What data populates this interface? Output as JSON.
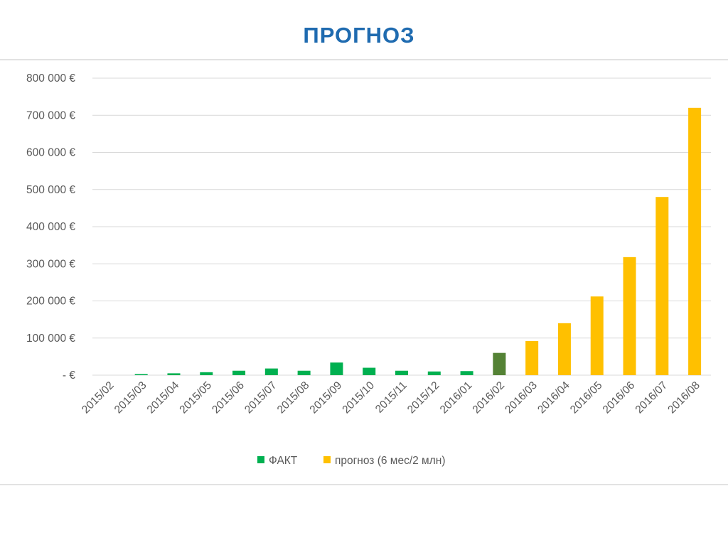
{
  "page": {
    "title": "ПРОГНОЗ"
  },
  "chart_data": {
    "type": "bar",
    "title": "",
    "xlabel": "",
    "ylabel": "",
    "ylim": [
      0,
      800000
    ],
    "grid": true,
    "legend_position": "bottom",
    "y_ticks": [
      0,
      100000,
      200000,
      300000,
      400000,
      500000,
      600000,
      700000,
      800000
    ],
    "y_tick_labels": [
      "- €",
      "100 000 €",
      "200 000 €",
      "300 000 €",
      "400 000 €",
      "500 000 €",
      "600 000 €",
      "700 000 €",
      "800 000 €"
    ],
    "categories": [
      "2015/02",
      "2015/03",
      "2015/04",
      "2015/05",
      "2015/06",
      "2015/07",
      "2015/08",
      "2015/09",
      "2015/10",
      "2015/11",
      "2015/12",
      "2016/01",
      "2016/02",
      "2016/03",
      "2016/04",
      "2016/05",
      "2016/06",
      "2016/07",
      "2016/08"
    ],
    "series": [
      {
        "name": "ФАКТ",
        "color": "#00b050",
        "values": [
          0,
          3000,
          5000,
          8000,
          12000,
          18000,
          12000,
          34000,
          20000,
          12000,
          10000,
          11000,
          60000,
          null,
          null,
          null,
          null,
          null,
          null
        ]
      },
      {
        "name": "прогноз (6 мес/2 млн)",
        "color": "#ffc000",
        "values": [
          null,
          null,
          null,
          null,
          null,
          null,
          null,
          null,
          null,
          null,
          null,
          null,
          null,
          92000,
          140000,
          212000,
          318000,
          480000,
          720000
        ]
      }
    ],
    "highlight": {
      "category": "2016/02",
      "color": "#548235"
    }
  }
}
